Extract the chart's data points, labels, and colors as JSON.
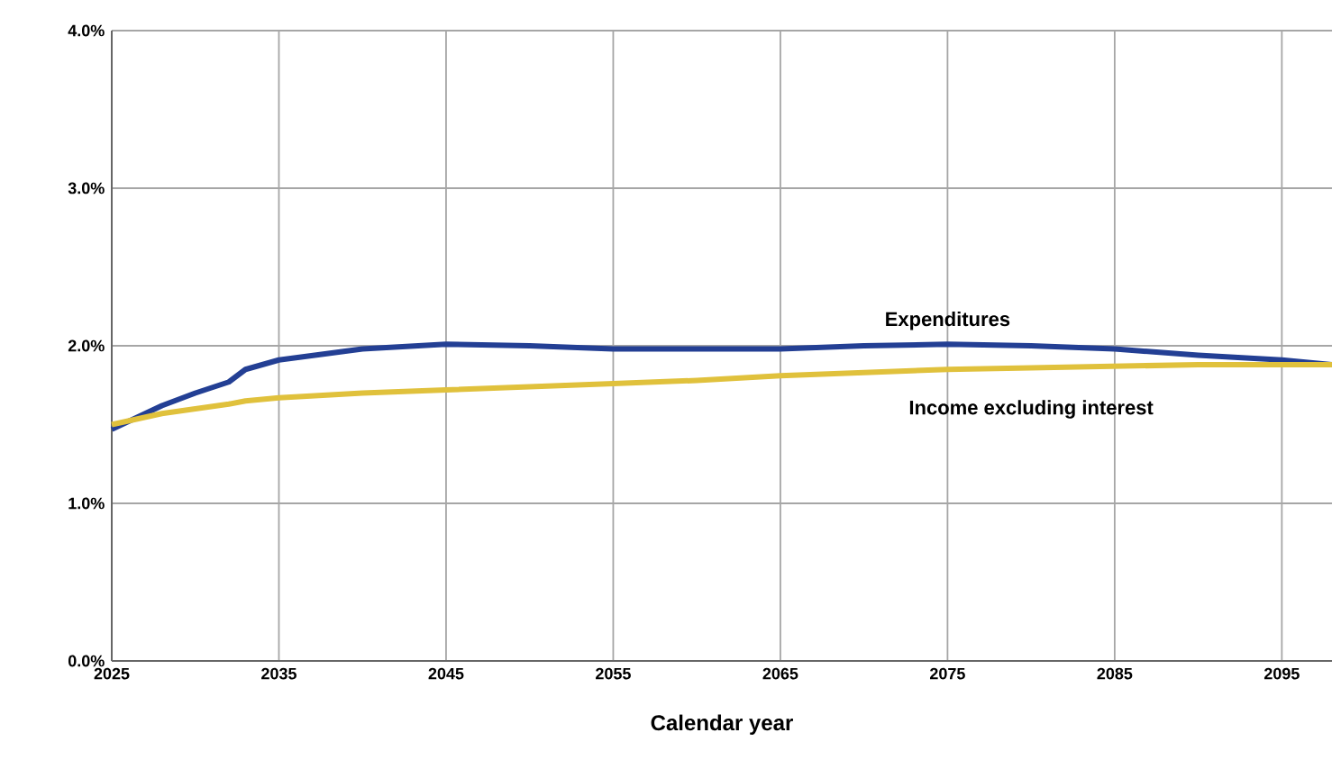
{
  "chart_data": {
    "type": "line",
    "xlabel": "Calendar year",
    "x": [
      2025,
      2028,
      2030,
      2032,
      2033,
      2035,
      2040,
      2045,
      2050,
      2055,
      2060,
      2065,
      2070,
      2075,
      2080,
      2085,
      2090,
      2095,
      2098
    ],
    "series": [
      {
        "name": "Expenditures",
        "color": "#233f94",
        "values": [
          1.47,
          1.62,
          1.7,
          1.77,
          1.85,
          1.91,
          1.98,
          2.01,
          2.0,
          1.98,
          1.98,
          1.98,
          2.0,
          2.01,
          2.0,
          1.98,
          1.94,
          1.91,
          1.88
        ]
      },
      {
        "name": "Income excluding interest",
        "color": "#e0c13c",
        "values": [
          1.5,
          1.57,
          1.6,
          1.63,
          1.65,
          1.67,
          1.7,
          1.72,
          1.74,
          1.76,
          1.78,
          1.81,
          1.83,
          1.85,
          1.86,
          1.87,
          1.88,
          1.88,
          1.88
        ]
      }
    ],
    "xlim": [
      2025,
      2098
    ],
    "ylim": [
      0,
      4
    ],
    "xticks": [
      2025,
      2035,
      2045,
      2055,
      2065,
      2075,
      2085,
      2095
    ],
    "yticks": [
      {
        "value": 0,
        "label": "0.0%"
      },
      {
        "value": 1,
        "label": "1.0%"
      },
      {
        "value": 2,
        "label": "2.0%"
      },
      {
        "value": 3,
        "label": "3.0%"
      },
      {
        "value": 4,
        "label": "4.0%"
      }
    ],
    "grid": true,
    "legend": false,
    "marker": "none",
    "line_style": "solid"
  }
}
